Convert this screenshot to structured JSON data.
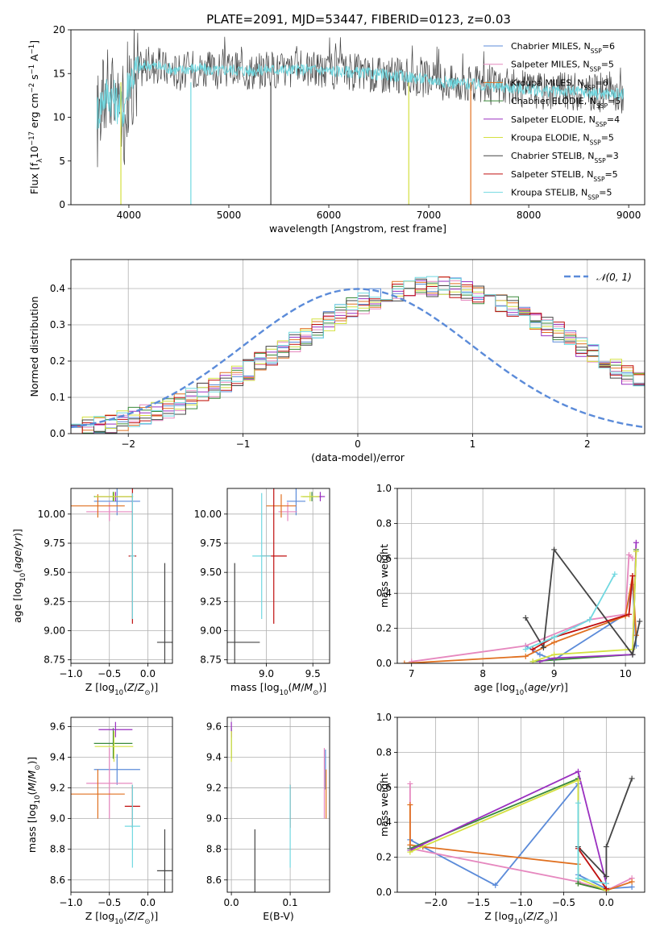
{
  "title": "PLATE=2091, MJD=53447, FIBERID=0123, z=0.03",
  "colors": {
    "Chabrier MILES": "#5b8bd9",
    "Salpeter MILES": "#e688bf",
    "Kroupa MILES": "#e07020",
    "Chabrier ELODIE": "#3a8a3a",
    "Salpeter ELODIE": "#9a30c0",
    "Kroupa ELODIE": "#d4e040",
    "Chabrier STELIB": "#444444",
    "Salpeter STELIB": "#c01010",
    "Kroupa STELIB": "#70d8e0",
    "normal": "#5b8bd9"
  },
  "chart_data": [
    {
      "type": "line",
      "id": "spectrum",
      "xlabel": "wavelength [Angstrom, rest frame]",
      "ylabel_main": "Flux [f",
      "ylabel_sub": "λ",
      "ylabel_rest": "10",
      "ylabel_exp1": "−17",
      "ylabel_mid": " erg cm",
      "ylabel_exp2": "−2",
      "ylabel_mid2": " s",
      "ylabel_exp3": "−1",
      "ylabel_end": " A",
      "ylabel_exp4": "−1",
      "ylabel_close": "]",
      "xlim": [
        3420,
        9160
      ],
      "ylim": [
        0,
        20
      ],
      "xticks": [
        4000,
        5000,
        6000,
        7000,
        8000,
        9000
      ],
      "yticks": [
        0,
        5,
        10,
        15,
        20
      ],
      "legend_placement": "top-right",
      "legend": [
        {
          "label": "Chabrier MILES, N",
          "sub": "SSP",
          "val": "=6"
        },
        {
          "label": "Salpeter MILES, N",
          "sub": "SSP",
          "val": "=5"
        },
        {
          "label": "Kroupa MILES, N",
          "sub": "SSP",
          "val": "=6"
        },
        {
          "label": "Chabrier ELODIE, N",
          "sub": "SSP",
          "val": "=5"
        },
        {
          "label": "Salpeter ELODIE, N",
          "sub": "SSP",
          "val": "=4"
        },
        {
          "label": "Kroupa ELODIE, N",
          "sub": "SSP",
          "val": "=5"
        },
        {
          "label": "Chabrier STELIB, N",
          "sub": "SSP",
          "val": "=3"
        },
        {
          "label": "Salpeter STELIB, N",
          "sub": "SSP",
          "val": "=5"
        },
        {
          "label": "Kroupa STELIB, N",
          "sub": "SSP",
          "val": "=5"
        }
      ],
      "data_range": [
        3680,
        8950
      ],
      "series": [
        {
          "model": "Chabrier STELIB",
          "x": [
            3680,
            3700,
            3750,
            3800,
            3850,
            3900,
            3950,
            4000,
            4100,
            4200,
            4300,
            4400,
            4500,
            4600,
            4700,
            4800,
            4900,
            5000,
            5200,
            5400,
            5600,
            5800,
            6000,
            6200,
            6400,
            6600,
            6800,
            7000,
            7200,
            7400,
            7600,
            7800,
            8000,
            8200,
            8400,
            8600,
            8800,
            8950
          ],
          "y": [
            9.0,
            10.5,
            12.5,
            13.0,
            12.0,
            11.0,
            10.0,
            14.5,
            15.5,
            16.0,
            15.8,
            15.5,
            15.2,
            15.5,
            15.6,
            15.4,
            15.2,
            15.5,
            15.3,
            15.5,
            15.4,
            15.5,
            15.3,
            15.2,
            15.0,
            14.8,
            14.6,
            14.3,
            14.0,
            13.8,
            13.6,
            13.4,
            13.2,
            13.0,
            13.0,
            12.8,
            12.7,
            12.6
          ]
        },
        {
          "model": "Kroupa STELIB",
          "x": [
            3680,
            3700,
            3750,
            3800,
            3850,
            3900,
            3950,
            4000,
            4100,
            4200,
            4300,
            4400,
            4500,
            4600,
            4700,
            4800,
            4900,
            5000,
            5200,
            5400,
            5600,
            5800,
            6000,
            6200,
            6400,
            6600,
            6800,
            7000,
            7200,
            7400,
            7600,
            7800,
            8000,
            8200,
            8400,
            8600,
            8800,
            8950
          ],
          "y": [
            10.5,
            11.0,
            12.5,
            12.8,
            12.0,
            11.5,
            11.0,
            14.5,
            15.6,
            16.0,
            15.8,
            15.6,
            15.3,
            15.6,
            15.6,
            15.4,
            15.3,
            15.5,
            15.3,
            15.5,
            15.4,
            15.5,
            15.3,
            15.2,
            15.0,
            14.8,
            14.6,
            14.3,
            14.0,
            13.8,
            13.6,
            13.4,
            13.2,
            13.0,
            13.0,
            12.8,
            12.7,
            12.6
          ]
        }
      ],
      "drops": [
        {
          "x": 3920,
          "color_model": "Kroupa ELODIE"
        },
        {
          "x": 4620,
          "color_model": "Kroupa STELIB"
        },
        {
          "x": 5420,
          "color_model": "Chabrier STELIB"
        },
        {
          "x": 6800,
          "color_model": "Kroupa ELODIE"
        },
        {
          "x": 7420,
          "color_model": "Kroupa MILES"
        }
      ]
    },
    {
      "type": "histogram",
      "id": "residuals",
      "xlabel": "(data-model)/error",
      "ylabel": "Normed distribution",
      "xlim": [
        -2.5,
        2.5
      ],
      "ylim": [
        0,
        0.48
      ],
      "xticks": [
        -2,
        -1,
        0,
        1,
        2
      ],
      "yticks": [
        0.0,
        0.1,
        0.2,
        0.3,
        0.4
      ],
      "legend_placement": "top-right",
      "legend_label": "𝒩(0, 1)",
      "bin_width": 0.1,
      "bin_start": -2.5,
      "base": [
        0.018,
        0.022,
        0.026,
        0.031,
        0.036,
        0.044,
        0.052,
        0.061,
        0.071,
        0.083,
        0.096,
        0.11,
        0.125,
        0.141,
        0.157,
        0.175,
        0.194,
        0.213,
        0.233,
        0.253,
        0.272,
        0.291,
        0.31,
        0.328,
        0.345,
        0.36,
        0.372,
        0.383,
        0.391,
        0.397,
        0.402,
        0.405,
        0.404,
        0.4,
        0.394,
        0.386,
        0.376,
        0.363,
        0.348,
        0.332,
        0.315,
        0.297,
        0.278,
        0.258,
        0.238,
        0.219,
        0.199,
        0.18,
        0.162,
        0.145,
        0.128
      ]
    },
    {
      "type": "errorbar",
      "id": "age-vs-z",
      "xlabel": "Z [log",
      "ylabel": "age  [log",
      "xlim": [
        -1.0,
        0.32
      ],
      "ylim": [
        8.72,
        10.22
      ],
      "xticks": [
        -1.0,
        -0.5,
        0.0
      ],
      "yticks": [
        8.75,
        9.0,
        9.25,
        9.5,
        9.75,
        10.0
      ],
      "points": [
        {
          "model": "Chabrier MILES",
          "x": -0.4,
          "y": 10.11,
          "xerr": 0.3,
          "yerr": 0.12
        },
        {
          "model": "Salpeter MILES",
          "x": -0.5,
          "y": 10.02,
          "xerr": 0.3,
          "yerr": 0.08
        },
        {
          "model": "Kroupa MILES",
          "x": -0.65,
          "y": 10.07,
          "xerr": 0.35,
          "yerr": 0.1
        },
        {
          "model": "Chabrier ELODIE",
          "x": -0.45,
          "y": 10.15,
          "xerr": 0.25,
          "yerr": 0.04
        },
        {
          "model": "Salpeter ELODIE",
          "x": -0.42,
          "y": 10.15,
          "xerr": 0.22,
          "yerr": 0.04
        },
        {
          "model": "Kroupa ELODIE",
          "x": -0.44,
          "y": 10.15,
          "xerr": 0.25,
          "yerr": 0.04
        },
        {
          "model": "Chabrier STELIB",
          "x": 0.22,
          "y": 8.9,
          "xerr": 0.1,
          "yerr": 0.68
        },
        {
          "model": "Salpeter STELIB",
          "x": -0.2,
          "y": 9.64,
          "xerr": 0.05,
          "yerr": 0.58
        },
        {
          "model": "Kroupa STELIB",
          "x": -0.2,
          "y": 9.64,
          "xerr": 0.03,
          "yerr": 0.54
        }
      ]
    },
    {
      "type": "errorbar",
      "id": "age-vs-mass",
      "xlabel": "mass [log",
      "xlim": [
        8.58,
        9.68
      ],
      "ylim": [
        8.72,
        10.22
      ],
      "xticks": [
        9.0,
        9.5
      ],
      "yticks": [
        8.75,
        9.0,
        9.25,
        9.5,
        9.75,
        10.0
      ],
      "points": [
        {
          "model": "Chabrier MILES",
          "x": 9.32,
          "y": 10.11,
          "xerr": 0.1,
          "yerr": 0.12
        },
        {
          "model": "Salpeter MILES",
          "x": 9.23,
          "y": 10.02,
          "xerr": 0.1,
          "yerr": 0.08
        },
        {
          "model": "Kroupa MILES",
          "x": 9.16,
          "y": 10.07,
          "xerr": 0.16,
          "yerr": 0.1
        },
        {
          "model": "Chabrier ELODIE",
          "x": 9.49,
          "y": 10.15,
          "xerr": 0.1,
          "yerr": 0.04
        },
        {
          "model": "Salpeter ELODIE",
          "x": 9.58,
          "y": 10.15,
          "xerr": 0.05,
          "yerr": 0.04
        },
        {
          "model": "Kroupa ELODIE",
          "x": 9.47,
          "y": 10.15,
          "xerr": 0.1,
          "yerr": 0.04
        },
        {
          "model": "Chabrier STELIB",
          "x": 8.66,
          "y": 8.9,
          "xerr": 0.27,
          "yerr": 0.68
        },
        {
          "model": "Salpeter STELIB",
          "x": 9.08,
          "y": 9.64,
          "xerr": 0.14,
          "yerr": 0.58
        },
        {
          "model": "Kroupa STELIB",
          "x": 8.95,
          "y": 9.64,
          "xerr": 0.1,
          "yerr": 0.54
        }
      ]
    },
    {
      "type": "line",
      "id": "weight-vs-age",
      "xlabel": "age  [log",
      "ylabel": "mass weight",
      "xlim": [
        6.8,
        10.27
      ],
      "ylim": [
        0.0,
        1.0
      ],
      "xticks": [
        7,
        8,
        9,
        10
      ],
      "yticks": [
        0.0,
        0.2,
        0.4,
        0.6,
        0.8,
        1.0
      ],
      "series": [
        {
          "model": "Chabrier MILES",
          "x": [
            8.6,
            8.8,
            9.0,
            10.0,
            10.1,
            10.15
          ],
          "y": [
            0.1,
            0.05,
            0.02,
            0.28,
            0.45,
            0.1
          ]
        },
        {
          "model": "Salpeter MILES",
          "x": [
            7.0,
            8.6,
            9.5,
            10.0,
            10.05,
            10.1
          ],
          "y": [
            0.01,
            0.1,
            0.25,
            0.28,
            0.62,
            0.6
          ]
        },
        {
          "model": "Kroupa MILES",
          "x": [
            6.9,
            8.6,
            9.0,
            10.0,
            10.1,
            10.15
          ],
          "y": [
            0.0,
            0.04,
            0.12,
            0.27,
            0.5,
            0.16
          ]
        },
        {
          "model": "Chabrier ELODIE",
          "x": [
            8.7,
            9.0,
            10.1,
            10.15
          ],
          "y": [
            0.01,
            0.02,
            0.05,
            0.65
          ]
        },
        {
          "model": "Salpeter ELODIE",
          "x": [
            8.8,
            9.0,
            10.1,
            10.15
          ],
          "y": [
            0.01,
            0.03,
            0.05,
            0.69
          ]
        },
        {
          "model": "Kroupa ELODIE",
          "x": [
            8.7,
            9.0,
            10.1,
            10.15
          ],
          "y": [
            0.01,
            0.05,
            0.08,
            0.64
          ]
        },
        {
          "model": "Chabrier STELIB",
          "x": [
            8.6,
            8.85,
            9.0,
            10.1,
            10.2
          ],
          "y": [
            0.26,
            0.09,
            0.65,
            0.05,
            0.24
          ]
        },
        {
          "model": "Salpeter STELIB",
          "x": [
            8.7,
            9.0,
            10.05,
            10.1
          ],
          "y": [
            0.08,
            0.15,
            0.28,
            0.5
          ]
        },
        {
          "model": "Kroupa STELIB",
          "x": [
            8.6,
            9.0,
            9.5,
            9.85
          ],
          "y": [
            0.08,
            0.15,
            0.25,
            0.51
          ]
        }
      ]
    },
    {
      "type": "errorbar",
      "id": "mass-vs-z",
      "xlabel": "Z [log",
      "ylabel": "mass [log",
      "xlim": [
        -1.0,
        0.32
      ],
      "ylim": [
        8.52,
        9.66
      ],
      "xticks": [
        -1.0,
        -0.5,
        0.0
      ],
      "yticks": [
        8.6,
        8.8,
        9.0,
        9.2,
        9.4,
        9.6
      ],
      "points": [
        {
          "model": "Chabrier MILES",
          "x": -0.4,
          "y": 9.32,
          "xerr": 0.3,
          "yerr": 0.1
        },
        {
          "model": "Salpeter MILES",
          "x": -0.5,
          "y": 9.23,
          "xerr": 0.3,
          "yerr": 0.23
        },
        {
          "model": "Kroupa MILES",
          "x": -0.65,
          "y": 9.16,
          "xerr": 0.35,
          "yerr": 0.16
        },
        {
          "model": "Chabrier ELODIE",
          "x": -0.45,
          "y": 9.49,
          "xerr": 0.25,
          "yerr": 0.1
        },
        {
          "model": "Salpeter ELODIE",
          "x": -0.42,
          "y": 9.58,
          "xerr": 0.22,
          "yerr": 0.05
        },
        {
          "model": "Kroupa ELODIE",
          "x": -0.44,
          "y": 9.47,
          "xerr": 0.25,
          "yerr": 0.1
        },
        {
          "model": "Chabrier STELIB",
          "x": 0.22,
          "y": 8.66,
          "xerr": 0.1,
          "yerr": 0.27
        },
        {
          "model": "Salpeter STELIB",
          "x": -0.2,
          "y": 9.08,
          "xerr": 0.1,
          "yerr": 0.14
        },
        {
          "model": "Kroupa STELIB",
          "x": -0.2,
          "y": 8.95,
          "xerr": 0.1,
          "yerr": 0.27
        }
      ]
    },
    {
      "type": "errorbar",
      "id": "mass-vs-ebv",
      "xlabel": "E(B-V)",
      "xlim": [
        -0.007,
        0.167
      ],
      "ylim": [
        8.52,
        9.66
      ],
      "xticks": [
        0.0,
        0.1
      ],
      "yticks": [
        8.6,
        8.8,
        9.0,
        9.2,
        9.4,
        9.6
      ],
      "points": [
        {
          "model": "Chabrier MILES",
          "x": 0.16,
          "y": 9.32,
          "yerr": 0.13
        },
        {
          "model": "Salpeter MILES",
          "x": 0.158,
          "y": 9.23,
          "yerr": 0.23
        },
        {
          "model": "Kroupa MILES",
          "x": 0.161,
          "y": 9.16,
          "yerr": 0.16
        },
        {
          "model": "Chabrier ELODIE",
          "x": 0.0,
          "y": 9.49,
          "yerr": 0.1
        },
        {
          "model": "Salpeter ELODIE",
          "x": 0.0,
          "y": 9.58,
          "yerr": 0.05
        },
        {
          "model": "Kroupa ELODIE",
          "x": 0.0,
          "y": 9.47,
          "yerr": 0.1
        },
        {
          "model": "Chabrier STELIB",
          "x": 0.04,
          "y": 8.66,
          "yerr": 0.27
        },
        {
          "model": "Salpeter STELIB",
          "x": 0.1,
          "y": 9.08,
          "yerr": 0.14
        },
        {
          "model": "Kroupa STELIB",
          "x": 0.1,
          "y": 8.95,
          "yerr": 0.27
        }
      ]
    },
    {
      "type": "line",
      "id": "weight-vs-z",
      "xlabel": "Z [log",
      "ylabel": "mass weight",
      "xlim": [
        -2.45,
        0.45
      ],
      "ylim": [
        0.0,
        1.0
      ],
      "xticks": [
        -2.0,
        -1.5,
        -1.0,
        -0.5,
        0.0
      ],
      "yticks": [
        0.0,
        0.2,
        0.4,
        0.6,
        0.8,
        1.0
      ],
      "series": [
        {
          "model": "Chabrier MILES",
          "x": [
            -2.3,
            -2.15,
            -1.3,
            -0.33,
            -0.33,
            0.0,
            0.3
          ],
          "y": [
            0.3,
            0.26,
            0.04,
            0.62,
            0.1,
            0.02,
            0.03
          ]
        },
        {
          "model": "Salpeter MILES",
          "x": [
            -2.3,
            -2.3,
            -0.33,
            0.0,
            0.3
          ],
          "y": [
            0.62,
            0.25,
            0.06,
            0.01,
            0.08
          ]
        },
        {
          "model": "Kroupa MILES",
          "x": [
            -2.3,
            -2.3,
            -2.15,
            -0.33,
            -0.33,
            0.0,
            0.3
          ],
          "y": [
            0.5,
            0.27,
            0.26,
            0.16,
            0.05,
            0.01,
            0.06
          ]
        },
        {
          "model": "Chabrier ELODIE",
          "x": [
            -2.3,
            -0.33,
            -0.33,
            0.0
          ],
          "y": [
            0.25,
            0.65,
            0.05,
            0.01
          ]
        },
        {
          "model": "Salpeter ELODIE",
          "x": [
            -2.3,
            -0.33,
            0.0
          ],
          "y": [
            0.24,
            0.69,
            0.05
          ]
        },
        {
          "model": "Kroupa ELODIE",
          "x": [
            -2.3,
            -0.33,
            -0.33,
            0.0
          ],
          "y": [
            0.23,
            0.64,
            0.08,
            0.01
          ]
        },
        {
          "model": "Chabrier STELIB",
          "x": [
            -0.33,
            0.0,
            0.0,
            0.3
          ],
          "y": [
            0.26,
            0.09,
            0.26,
            0.65
          ]
        },
        {
          "model": "Salpeter STELIB",
          "x": [
            -0.33,
            0.0
          ],
          "y": [
            0.25,
            0.02
          ]
        },
        {
          "model": "Kroupa STELIB",
          "x": [
            -0.33,
            -0.33,
            0.0
          ],
          "y": [
            0.51,
            0.08,
            0.05
          ]
        }
      ]
    }
  ]
}
